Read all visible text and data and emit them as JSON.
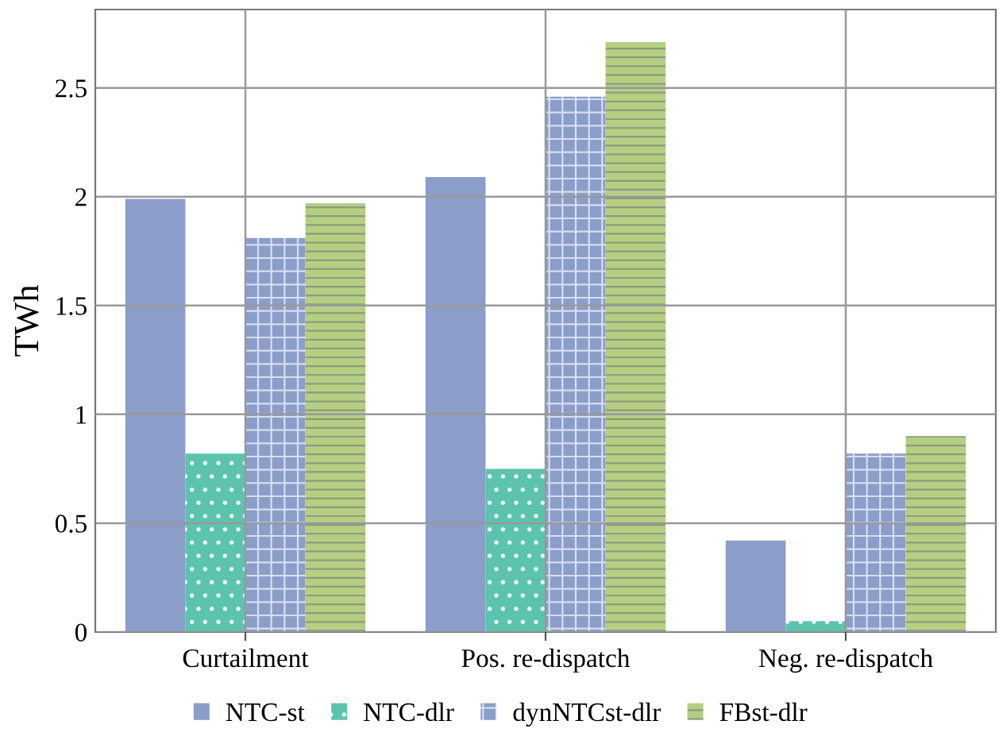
{
  "chart_data": {
    "type": "bar",
    "ylabel": "TWh",
    "categories": [
      "Curtailment",
      "Pos. re-dispatch",
      "Neg. re-dispatch"
    ],
    "series": [
      {
        "name": "NTC-st",
        "color": "#8b9dc9",
        "values": [
          1.99,
          2.09,
          0.42
        ]
      },
      {
        "name": "NTC-dlr",
        "color": "#5cc4ae",
        "values": [
          0.82,
          0.75,
          0.05
        ]
      },
      {
        "name": "dynNTCst-dlr",
        "color": "#8b9dc9",
        "values": [
          1.81,
          2.46,
          0.82
        ]
      },
      {
        "name": "FBst-dlr",
        "color": "#b5cf82",
        "values": [
          1.97,
          2.71,
          0.9
        ]
      }
    ],
    "ylim": [
      0,
      2.86
    ],
    "yticks": [
      0,
      0.5,
      1,
      1.5,
      2,
      2.5
    ],
    "grid": true,
    "legend": "bottom"
  }
}
